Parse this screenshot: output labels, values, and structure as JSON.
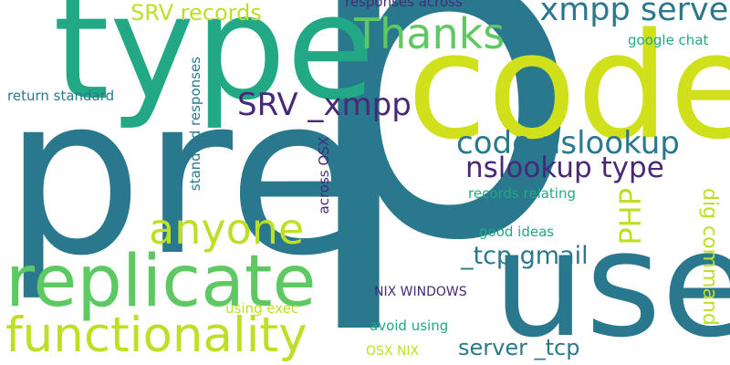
{
  "words": {
    "p": {
      "text": "p",
      "color": "#2a788e"
    },
    "pre": {
      "text": "pre",
      "color": "#2a788e"
    },
    "code": {
      "text": "code",
      "color": "#d0e11c"
    },
    "type": {
      "text": "type",
      "color": "#22a884"
    },
    "use": {
      "text": "use",
      "color": "#2a788e"
    },
    "replicate": {
      "text": "replicate",
      "color": "#5ec962"
    },
    "functionality": {
      "text": "functionality",
      "color": "#bddf26"
    },
    "anyone": {
      "text": "anyone",
      "color": "#bddf26"
    },
    "thanks": {
      "text": "Thanks",
      "color": "#5ec962"
    },
    "xmpp_server": {
      "text": "_xmpp server",
      "color": "#2a788e"
    },
    "srv_xmpp": {
      "text": "SRV _xmpp",
      "color": "#482878"
    },
    "code_nslookup": {
      "text": "code nslookup",
      "color": "#2a788e"
    },
    "nslookup_type": {
      "text": "nslookup type",
      "color": "#482878"
    },
    "php": {
      "text": "PHP",
      "color": "#bddf26"
    },
    "tcp_gmail": {
      "text": "_tcp gmail",
      "color": "#2a788e"
    },
    "server_tcp": {
      "text": "server _tcp",
      "color": "#2a788e"
    },
    "srv_records": {
      "text": "SRV records",
      "color": "#bddf26"
    },
    "responses_across": {
      "text": "responses across",
      "color": "#482878"
    },
    "google_chat": {
      "text": "google chat",
      "color": "#22a884"
    },
    "return_standard": {
      "text": "return standard",
      "color": "#2a788e"
    },
    "standard_responses": {
      "text": "standard responses",
      "color": "#2a788e"
    },
    "across_osx": {
      "text": "across OSX",
      "color": "#482878"
    },
    "records_relating": {
      "text": "records relating",
      "color": "#22a884"
    },
    "good_ideas": {
      "text": "good ideas",
      "color": "#22a884"
    },
    "dig_command": {
      "text": "dig command",
      "color": "#bddf26"
    },
    "nix_windows": {
      "text": "NIX WINDOWS",
      "color": "#482878"
    },
    "using_exec": {
      "text": "using exec",
      "color": "#bddf26"
    },
    "avoid_using": {
      "text": "avoid using",
      "color": "#22a884"
    },
    "osx_nix": {
      "text": "OSX NIX",
      "color": "#bddf26"
    }
  }
}
